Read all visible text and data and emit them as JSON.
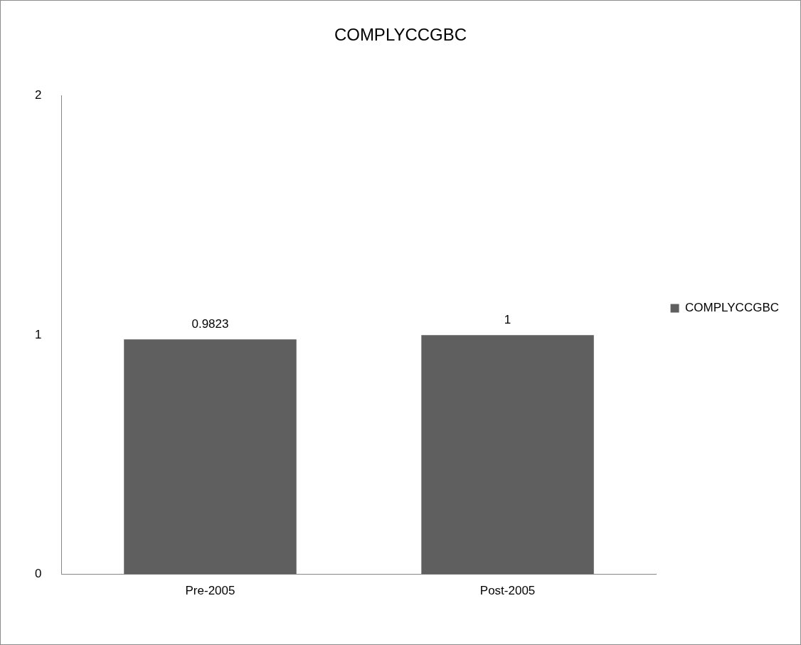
{
  "chart_data": {
    "type": "bar",
    "title": "COMPLYCCGBC",
    "categories": [
      "Pre-2005",
      "Post-2005"
    ],
    "series": [
      {
        "name": "COMPLYCCGBC",
        "color": "#5f5f5f",
        "values": [
          0.9823,
          1
        ]
      }
    ],
    "ylim": [
      0,
      2
    ],
    "yticks": [
      0,
      1,
      2
    ],
    "grid": false,
    "legend": "right",
    "data_labels": true
  }
}
